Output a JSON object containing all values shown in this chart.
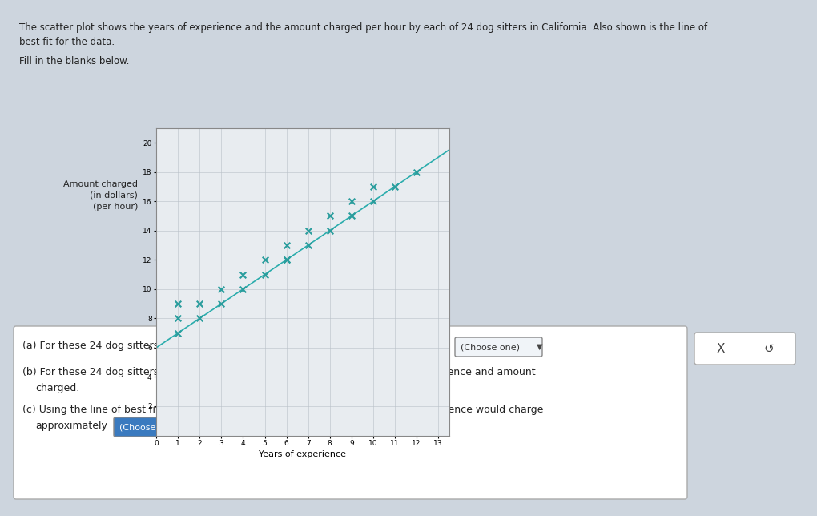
{
  "title_line1": "The scatter plot shows the years of experience and the amount charged per hour by each of 24 dog sitters in California. Also shown is the line of",
  "title_line2": "best fit for the data.",
  "fill_text": "Fill in the blanks below.",
  "xlabel": "Years of experience",
  "ylabel_line1": "Amount charged",
  "ylabel_line2": "(in dollars)",
  "ylabel_line3": "(per hour)",
  "xlim": [
    0,
    13.5
  ],
  "ylim": [
    0,
    21
  ],
  "xticks": [
    0,
    1,
    2,
    3,
    4,
    5,
    6,
    7,
    8,
    9,
    10,
    11,
    12,
    13
  ],
  "ytick_vals": [
    2,
    4,
    6,
    8,
    10,
    12,
    14,
    16,
    18,
    20
  ],
  "scatter_color": "#2a9d9d",
  "line_color": "#2aacac",
  "bg_color": "#cdd5de",
  "chart_bg": "#e8ecf0",
  "scatter_points": [
    [
      1,
      7
    ],
    [
      1,
      8
    ],
    [
      1,
      9
    ],
    [
      2,
      8
    ],
    [
      2,
      9
    ],
    [
      3,
      9
    ],
    [
      3,
      10
    ],
    [
      4,
      10
    ],
    [
      4,
      11
    ],
    [
      5,
      11
    ],
    [
      5,
      12
    ],
    [
      6,
      12
    ],
    [
      6,
      13
    ],
    [
      6,
      12
    ],
    [
      7,
      13
    ],
    [
      7,
      14
    ],
    [
      8,
      14
    ],
    [
      8,
      15
    ],
    [
      9,
      15
    ],
    [
      9,
      16
    ],
    [
      10,
      16
    ],
    [
      10,
      17
    ],
    [
      11,
      17
    ],
    [
      12,
      18
    ]
  ],
  "line_x": [
    0,
    13.5
  ],
  "line_y": [
    6.0,
    19.5
  ],
  "marker_size": 30,
  "marker_linewidth": 1.5,
  "q_a_text": "(a) For these 24 dog sitters, as experience increases, the amount charged tends to",
  "q_b_text1": "(b) For these 24 dog sitters, there is",
  "q_b_text2": "correlation between experience and amount",
  "q_b_text3": "charged.",
  "q_c_text1": "(c) Using the line of best fit, we would predict that a dog sitter with 9 years of experience would charge",
  "q_c_text2": "approximately",
  "choose_text": "(Choose one)",
  "x_btn": "X",
  "undo_btn": "↺"
}
